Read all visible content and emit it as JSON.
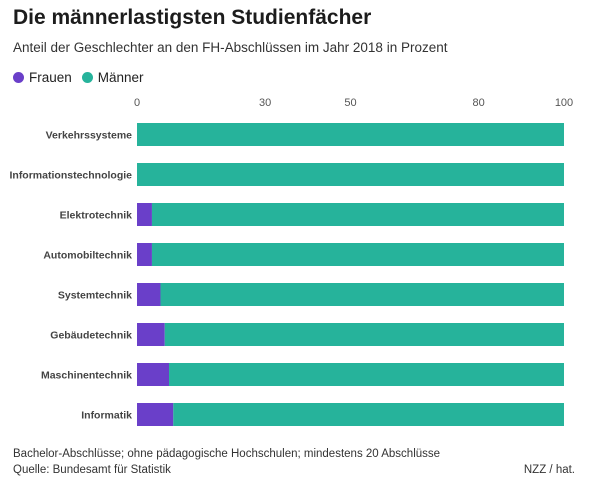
{
  "title": "Die männerlastigsten Studienfächer",
  "subtitle": "Anteil der Geschlechter an den FH-Abschlüssen im Jahr 2018 in Prozent",
  "footnote": "Bachelor-Abschlüsse; ohne pädagogische Hochschulen; mindestens 20 Abschlüsse",
  "source": "Quelle: Bundesamt für Statistik",
  "credit": "NZZ / hat.",
  "colors": {
    "frauen": "#6a3fc9",
    "maenner": "#26b39b"
  },
  "chart_data": {
    "type": "bar",
    "orientation": "horizontal",
    "stacked": true,
    "categories": [
      "Verkehrssysteme",
      "Informationstechnologie",
      "Elektrotechnik",
      "Automobiltechnik",
      "Systemtechnik",
      "Gebäudetechnik",
      "Maschinentechnik",
      "Informatik"
    ],
    "series": [
      {
        "name": "Frauen",
        "values": [
          0,
          0,
          3.5,
          3.5,
          5.5,
          6.5,
          7.5,
          8.5
        ]
      },
      {
        "name": "Männer",
        "values": [
          100,
          100,
          96.5,
          96.5,
          94.5,
          93.5,
          92.5,
          91.5
        ]
      }
    ],
    "xlim": [
      0,
      100
    ],
    "xticks": [
      0,
      30,
      50,
      80,
      100
    ],
    "legend": "top-left"
  }
}
